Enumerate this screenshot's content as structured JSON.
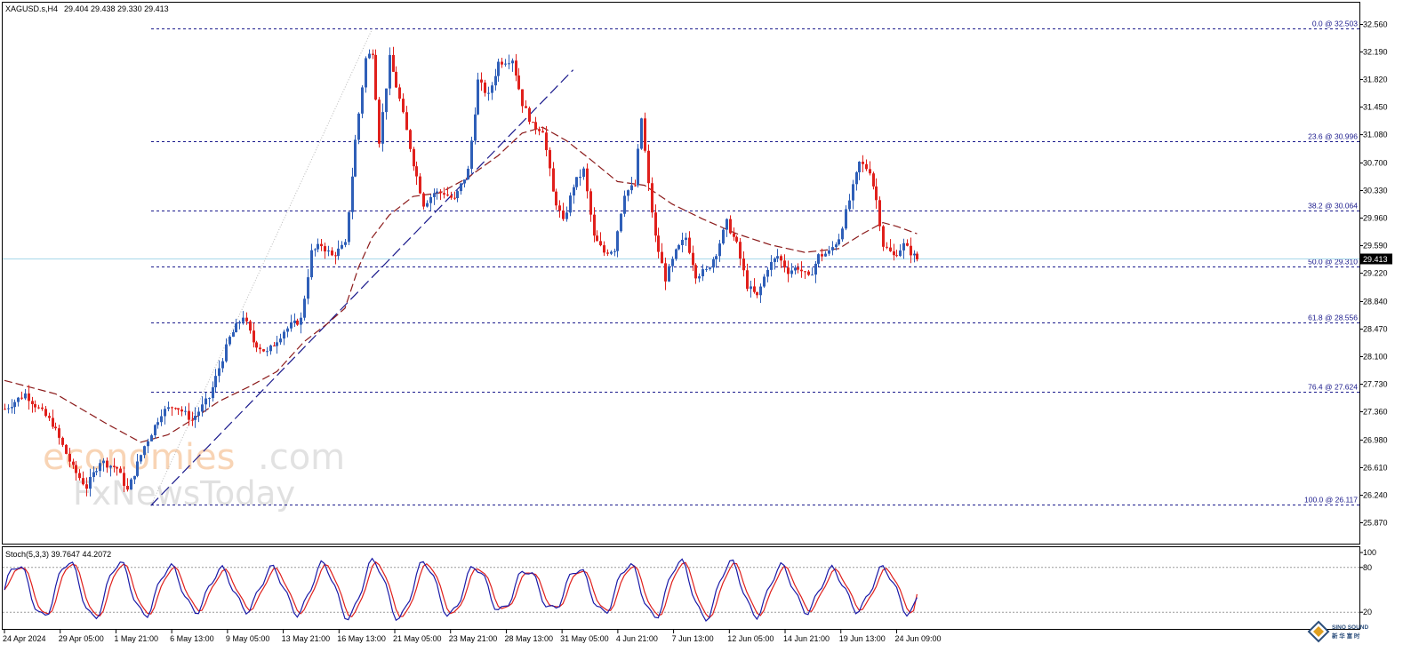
{
  "header": {
    "symbol": "XAGUSD.s,H4",
    "ohlc": "29.404 29.438 29.330 29.413",
    "stoch_label": "Stoch(5,3,3) 39.7647 44.2072"
  },
  "watermark": {
    "brand1": "economies",
    "brand1_suffix": ".com",
    "brand2": "FxNewsToday"
  },
  "logo": {
    "line1": "SINO SOUND",
    "line2": "新 华 富 时"
  },
  "colors": {
    "bull": "#2f5fb8",
    "bear": "#e0201c",
    "fib": "#1a1a8c",
    "ma": "#8b1a1a",
    "trend": "#1a1a8c",
    "price_line": "#a8d8ea",
    "stoch_main": "#1a1aa8",
    "stoch_signal": "#e0201c"
  },
  "chart_data": {
    "type": "candlestick",
    "symbol": "XAGUSD.s",
    "timeframe": "H4",
    "ylim": [
      25.87,
      32.56
    ],
    "price_ticks": [
      "32.560",
      "32.190",
      "31.820",
      "31.450",
      "31.080",
      "30.700",
      "30.330",
      "29.960",
      "29.590",
      "29.220",
      "28.840",
      "28.470",
      "28.100",
      "27.730",
      "27.360",
      "26.980",
      "26.610",
      "26.240",
      "25.870"
    ],
    "current_price": "29.413",
    "current_price_value": 29.413,
    "x_labels": [
      "24 Apr 2024",
      "29 Apr 05:00",
      "1 May 21:00",
      "6 May 13:00",
      "9 May 05:00",
      "13 May 21:00",
      "16 May 13:00",
      "21 May 05:00",
      "23 May 21:00",
      "28 May 13:00",
      "31 May 05:00",
      "4 Jun 21:00",
      "7 Jun 13:00",
      "12 Jun 05:00",
      "14 Jun 21:00",
      "19 Jun 13:00",
      "24 Jun 09:00"
    ],
    "fibonacci": [
      {
        "level": 32.503,
        "label": "0.0 @ 32.503"
      },
      {
        "level": 30.996,
        "label": "23.6 @ 30.996"
      },
      {
        "level": 30.064,
        "label": "38.2 @ 30.064"
      },
      {
        "level": 29.31,
        "label": "50.0 @ 29.310"
      },
      {
        "level": 28.556,
        "label": "61.8 @ 28.556"
      },
      {
        "level": 27.624,
        "label": "76.4 @ 27.624"
      },
      {
        "level": 26.117,
        "label": "100.0 @ 26.117"
      }
    ],
    "anchors": [
      {
        "bar": 0,
        "price": 27.4
      },
      {
        "bar": 6,
        "price": 27.6
      },
      {
        "bar": 14,
        "price": 27.2
      },
      {
        "bar": 20,
        "price": 26.6
      },
      {
        "bar": 24,
        "price": 26.35
      },
      {
        "bar": 28,
        "price": 26.7
      },
      {
        "bar": 33,
        "price": 26.6
      },
      {
        "bar": 36,
        "price": 26.3
      },
      {
        "bar": 41,
        "price": 26.9
      },
      {
        "bar": 46,
        "price": 27.35
      },
      {
        "bar": 50,
        "price": 27.45
      },
      {
        "bar": 55,
        "price": 27.25
      },
      {
        "bar": 60,
        "price": 27.55
      },
      {
        "bar": 66,
        "price": 28.35
      },
      {
        "bar": 70,
        "price": 28.65
      },
      {
        "bar": 73,
        "price": 28.3
      },
      {
        "bar": 77,
        "price": 28.15
      },
      {
        "bar": 82,
        "price": 28.45
      },
      {
        "bar": 87,
        "price": 28.6
      },
      {
        "bar": 90,
        "price": 29.5
      },
      {
        "bar": 93,
        "price": 29.6
      },
      {
        "bar": 96,
        "price": 29.45
      },
      {
        "bar": 100,
        "price": 29.6
      },
      {
        "bar": 103,
        "price": 31.0
      },
      {
        "bar": 106,
        "price": 32.1
      },
      {
        "bar": 108,
        "price": 32.2
      },
      {
        "bar": 110,
        "price": 31.0
      },
      {
        "bar": 113,
        "price": 32.1
      },
      {
        "bar": 116,
        "price": 31.55
      },
      {
        "bar": 120,
        "price": 30.7
      },
      {
        "bar": 123,
        "price": 30.15
      },
      {
        "bar": 126,
        "price": 30.3
      },
      {
        "bar": 129,
        "price": 30.3
      },
      {
        "bar": 132,
        "price": 30.2
      },
      {
        "bar": 136,
        "price": 30.6
      },
      {
        "bar": 139,
        "price": 31.8
      },
      {
        "bar": 142,
        "price": 31.6
      },
      {
        "bar": 145,
        "price": 32.05
      },
      {
        "bar": 149,
        "price": 32.1
      },
      {
        "bar": 152,
        "price": 31.5
      },
      {
        "bar": 155,
        "price": 31.2
      },
      {
        "bar": 158,
        "price": 31.15
      },
      {
        "bar": 161,
        "price": 30.3
      },
      {
        "bar": 164,
        "price": 29.9
      },
      {
        "bar": 167,
        "price": 30.4
      },
      {
        "bar": 170,
        "price": 30.6
      },
      {
        "bar": 173,
        "price": 29.7
      },
      {
        "bar": 176,
        "price": 29.5
      },
      {
        "bar": 179,
        "price": 29.55
      },
      {
        "bar": 182,
        "price": 30.3
      },
      {
        "bar": 185,
        "price": 30.4
      },
      {
        "bar": 187,
        "price": 31.3
      },
      {
        "bar": 189,
        "price": 30.4
      },
      {
        "bar": 191,
        "price": 29.7
      },
      {
        "bar": 194,
        "price": 29.15
      },
      {
        "bar": 197,
        "price": 29.5
      },
      {
        "bar": 200,
        "price": 29.7
      },
      {
        "bar": 203,
        "price": 29.2
      },
      {
        "bar": 206,
        "price": 29.25
      },
      {
        "bar": 209,
        "price": 29.5
      },
      {
        "bar": 212,
        "price": 29.9
      },
      {
        "bar": 215,
        "price": 29.6
      },
      {
        "bar": 218,
        "price": 29.05
      },
      {
        "bar": 221,
        "price": 28.9
      },
      {
        "bar": 224,
        "price": 29.3
      },
      {
        "bar": 227,
        "price": 29.45
      },
      {
        "bar": 230,
        "price": 29.25
      },
      {
        "bar": 233,
        "price": 29.3
      },
      {
        "bar": 236,
        "price": 29.15
      },
      {
        "bar": 239,
        "price": 29.45
      },
      {
        "bar": 242,
        "price": 29.5
      },
      {
        "bar": 245,
        "price": 29.7
      },
      {
        "bar": 248,
        "price": 30.2
      },
      {
        "bar": 251,
        "price": 30.7
      },
      {
        "bar": 254,
        "price": 30.6
      },
      {
        "bar": 256,
        "price": 30.2
      },
      {
        "bar": 258,
        "price": 29.6
      },
      {
        "bar": 261,
        "price": 29.45
      },
      {
        "bar": 264,
        "price": 29.6
      },
      {
        "bar": 267,
        "price": 29.45
      },
      {
        "bar": 268,
        "price": 29.41
      }
    ],
    "moving_average": [
      {
        "bar": 0,
        "price": 27.78
      },
      {
        "bar": 15,
        "price": 27.6
      },
      {
        "bar": 30,
        "price": 27.2
      },
      {
        "bar": 40,
        "price": 26.95
      },
      {
        "bar": 48,
        "price": 27.05
      },
      {
        "bar": 55,
        "price": 27.25
      },
      {
        "bar": 63,
        "price": 27.5
      },
      {
        "bar": 72,
        "price": 27.7
      },
      {
        "bar": 80,
        "price": 27.9
      },
      {
        "bar": 88,
        "price": 28.3
      },
      {
        "bar": 95,
        "price": 28.55
      },
      {
        "bar": 100,
        "price": 28.75
      },
      {
        "bar": 104,
        "price": 29.3
      },
      {
        "bar": 108,
        "price": 29.7
      },
      {
        "bar": 113,
        "price": 30.0
      },
      {
        "bar": 120,
        "price": 30.25
      },
      {
        "bar": 128,
        "price": 30.3
      },
      {
        "bar": 136,
        "price": 30.5
      },
      {
        "bar": 145,
        "price": 30.8
      },
      {
        "bar": 152,
        "price": 31.1
      },
      {
        "bar": 158,
        "price": 31.18
      },
      {
        "bar": 165,
        "price": 31.0
      },
      {
        "bar": 172,
        "price": 30.75
      },
      {
        "bar": 180,
        "price": 30.45
      },
      {
        "bar": 188,
        "price": 30.4
      },
      {
        "bar": 196,
        "price": 30.15
      },
      {
        "bar": 205,
        "price": 29.95
      },
      {
        "bar": 215,
        "price": 29.75
      },
      {
        "bar": 225,
        "price": 29.6
      },
      {
        "bar": 235,
        "price": 29.5
      },
      {
        "bar": 245,
        "price": 29.55
      },
      {
        "bar": 252,
        "price": 29.75
      },
      {
        "bar": 258,
        "price": 29.9
      },
      {
        "bar": 262,
        "price": 29.85
      },
      {
        "bar": 268,
        "price": 29.75
      }
    ],
    "trendline": {
      "from": {
        "bar": 43,
        "price": 26.1
      },
      "to": {
        "bar": 167,
        "price": 31.95
      }
    },
    "fib_source_line": {
      "from": {
        "bar": 43,
        "price": 26.1
      },
      "to": {
        "bar": 108,
        "price": 32.5
      }
    },
    "stochastic": {
      "params": "5,3,3",
      "main": 39.7647,
      "signal": 44.2072,
      "levels": [
        80,
        20
      ],
      "ylim": [
        0,
        100
      ],
      "tick_labels": [
        "100",
        "80",
        "20"
      ]
    }
  }
}
